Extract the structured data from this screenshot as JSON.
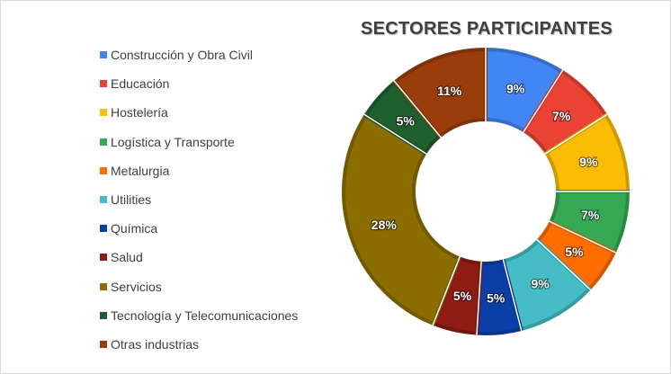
{
  "chart_data": {
    "type": "pie",
    "title": "SECTORES PARTICIPANTES",
    "legend_position": "left",
    "categories": [
      "Construcción y Obra Civil",
      "Educación",
      "Hostelería",
      "Logística y Transporte",
      "Metalurgia",
      "Utilities",
      "Química",
      "Salud",
      "Servicios",
      "Tecnología y Telecomunicaciones",
      "Otras industrias"
    ],
    "values": [
      9,
      7,
      9,
      7,
      5,
      9,
      5,
      5,
      28,
      5,
      11
    ],
    "labels": [
      "9%",
      "7%",
      "9%",
      "7%",
      "5%",
      "9%",
      "5%",
      "5%",
      "28%",
      "5%",
      "11%"
    ],
    "colors": [
      "#4285f4",
      "#ea4335",
      "#fbbc04",
      "#34a853",
      "#ff6d01",
      "#46bdc6",
      "#0b3fa8",
      "#8e1b14",
      "#8c6d00",
      "#1f5e2d",
      "#993d0a"
    ],
    "hole": "donut"
  }
}
